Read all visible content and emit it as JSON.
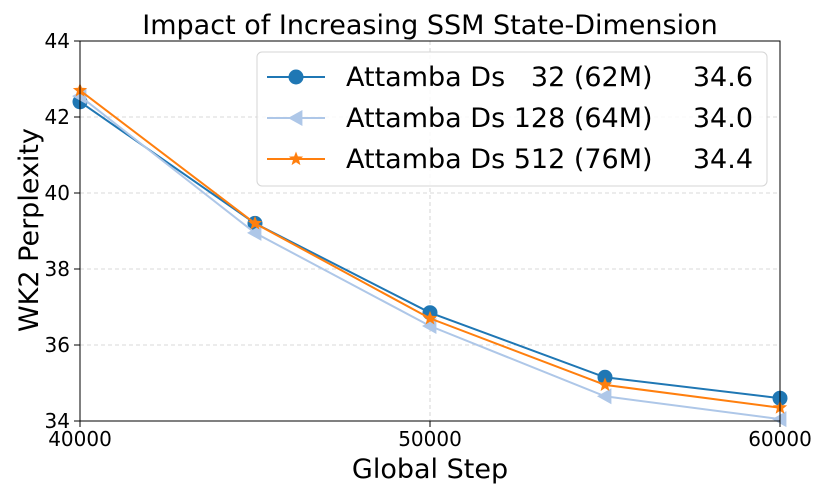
{
  "chart_data": {
    "type": "line",
    "title": "Impact of Increasing SSM State-Dimension",
    "xlabel": "Global Step",
    "ylabel": "WK2 Perplexity",
    "xlim": [
      40000,
      60000
    ],
    "ylim": [
      34,
      44
    ],
    "xticks": [
      40000,
      50000,
      60000
    ],
    "xtick_labels": [
      "40000",
      "50000",
      "60000"
    ],
    "yticks": [
      34,
      36,
      38,
      40,
      42,
      44
    ],
    "ytick_labels": [
      "34",
      "36",
      "38",
      "40",
      "42",
      "44"
    ],
    "grid": true,
    "legend_position": "top-right",
    "x": [
      40000,
      45000,
      50000,
      55000,
      60000
    ],
    "series": [
      {
        "name": "Attamba Ds   32 (62M)",
        "legend_value": "34.6",
        "color": "#1f77b4",
        "marker": "circle",
        "values": [
          42.4,
          39.2,
          36.85,
          35.15,
          34.6
        ]
      },
      {
        "name": "Attamba Ds 128 (64M)",
        "legend_value": "34.0",
        "color": "#aec7e8",
        "marker": "triangle-left",
        "values": [
          42.55,
          38.95,
          36.5,
          34.65,
          34.05
        ]
      },
      {
        "name": "Attamba Ds 512 (76M)",
        "legend_value": "34.4",
        "color": "#ff7f0e",
        "marker": "star",
        "values": [
          42.7,
          39.2,
          36.7,
          34.95,
          34.35
        ]
      }
    ]
  }
}
